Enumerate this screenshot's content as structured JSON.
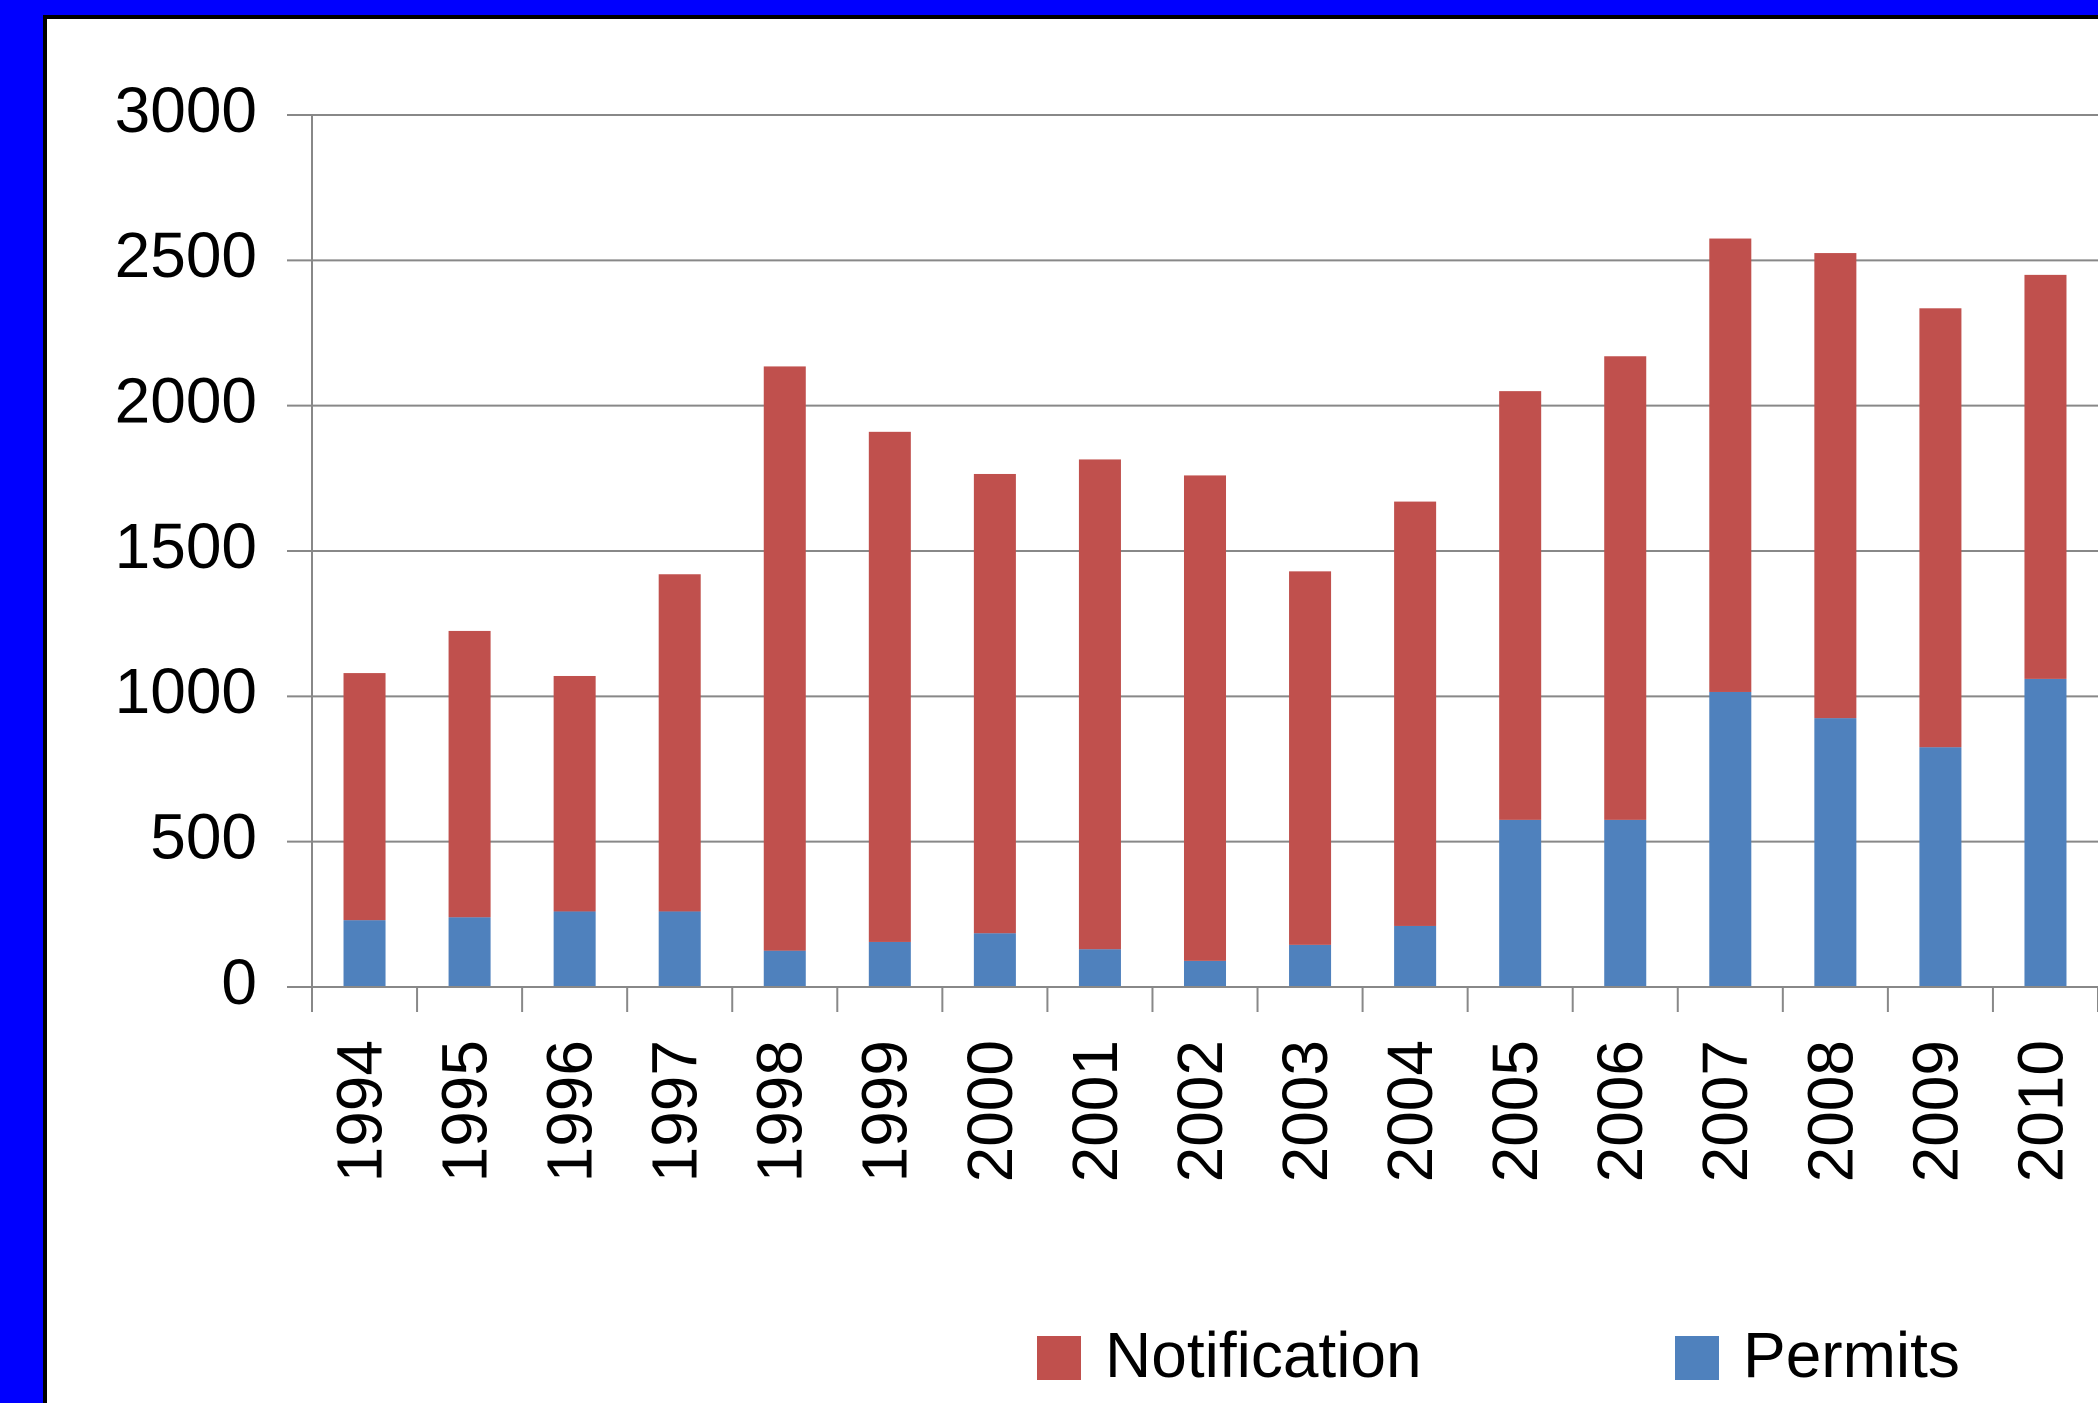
{
  "chart_data": {
    "type": "stacked_bar",
    "categories": [
      "1994",
      "1995",
      "1996",
      "1997",
      "1998",
      "1999",
      "2000",
      "2001",
      "2002",
      "2003",
      "2004",
      "2005",
      "2006",
      "2007",
      "2008",
      "2009",
      "2010"
    ],
    "series": [
      {
        "name": "Permits",
        "color": "#4f81bd",
        "values": [
          230,
          240,
          260,
          260,
          125,
          155,
          185,
          130,
          90,
          145,
          210,
          575,
          575,
          1015,
          925,
          825,
          1060
        ]
      },
      {
        "name": "Notification",
        "color": "#c0504d",
        "values": [
          850,
          985,
          810,
          1160,
          2010,
          1755,
          1580,
          1685,
          1670,
          1285,
          1460,
          1475,
          1595,
          1560,
          1600,
          1510,
          1390
        ]
      }
    ],
    "ylim": [
      0,
      3000
    ],
    "yticks": [
      0,
      500,
      1000,
      1500,
      2000,
      2500,
      3000
    ],
    "grid": true,
    "legend": "bottom"
  }
}
